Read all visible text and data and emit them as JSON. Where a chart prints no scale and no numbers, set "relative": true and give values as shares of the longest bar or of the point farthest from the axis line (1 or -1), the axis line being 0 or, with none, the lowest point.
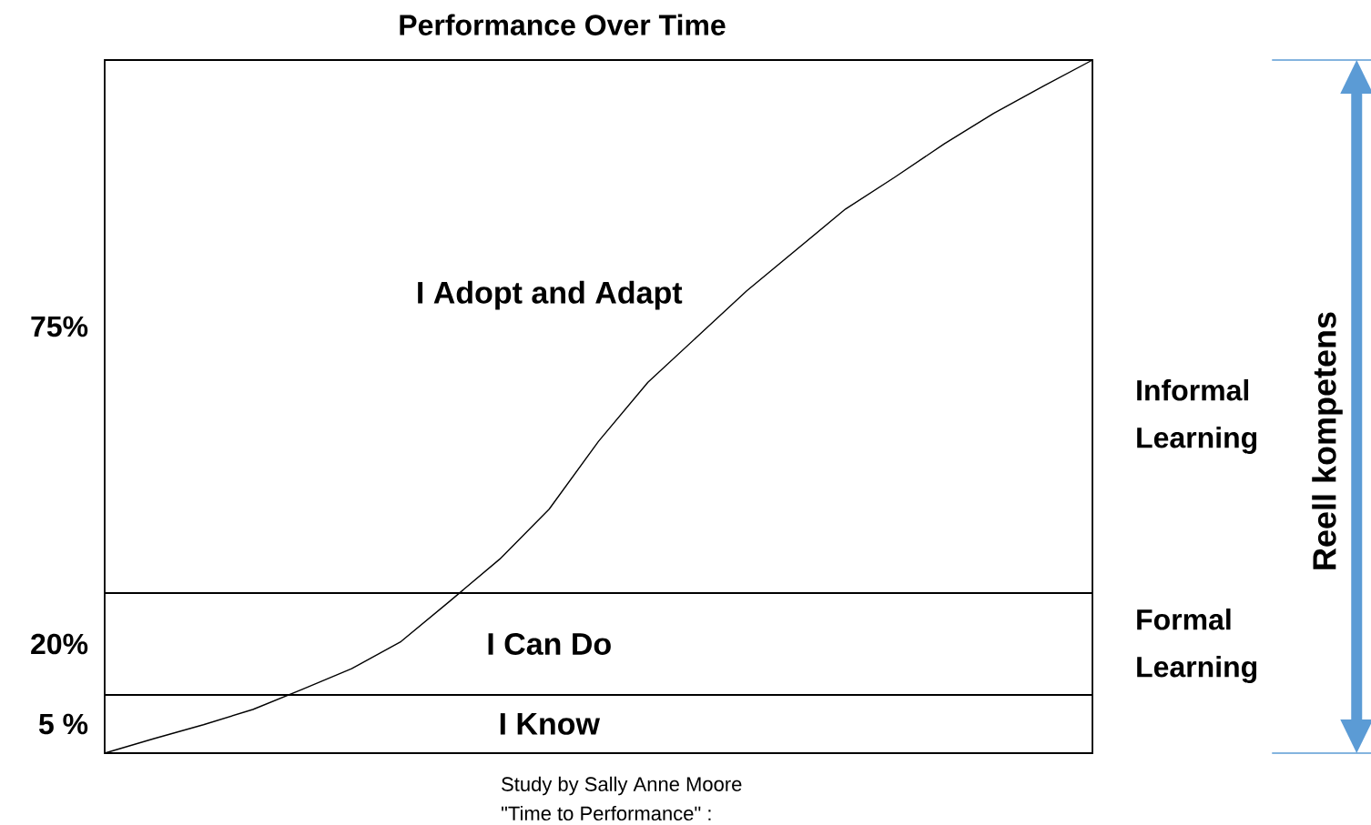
{
  "chart_data": {
    "type": "line",
    "title": "Performance Over Time",
    "relative": true,
    "categories": [
      null,
      null,
      null,
      null,
      null,
      null,
      null,
      null,
      null,
      null,
      null,
      null,
      null,
      null,
      null,
      null,
      null,
      null,
      null,
      null,
      null
    ],
    "series": [
      {
        "color": "#000000",
        "values": [
          0,
          0.021,
          0.041,
          0.063,
          0.092,
          0.122,
          0.161,
          0.22,
          0.28,
          0.352,
          0.45,
          0.535,
          0.601,
          0.667,
          0.726,
          0.785,
          0.831,
          0.879,
          0.923,
          0.962,
          1
        ]
      }
    ],
    "ref_lines": [
      {
        "axis": "y",
        "value": 0.084,
        "color": "#000000"
      },
      {
        "axis": "y",
        "value": 0.231,
        "color": "#000000"
      }
    ],
    "annotations": [
      "I Know",
      "I Can Do",
      "I Adopt and Adapt",
      "5 %",
      "20%",
      "75%",
      "Formal Learning",
      "Informal Learning",
      "Reell kompetens",
      "Study by Sally Anne Moore",
      "\"Time to Performance\" :"
    ]
  }
}
